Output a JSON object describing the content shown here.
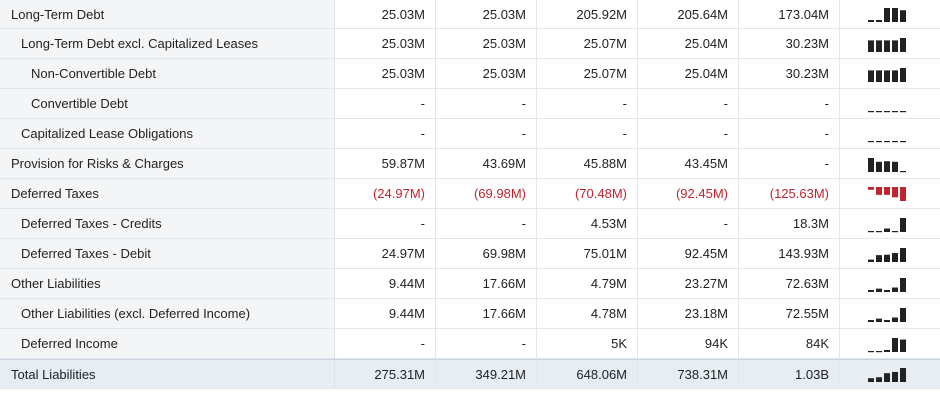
{
  "rows": [
    {
      "label": "Long-Term Debt",
      "indent": 0,
      "values": [
        "25.03M",
        "25.03M",
        "205.92M",
        "205.64M",
        "173.04M"
      ],
      "trend": [
        0.12,
        0.12,
        1.0,
        1.0,
        0.84
      ]
    },
    {
      "label": "Long-Term Debt excl. Capitalized Leases",
      "indent": 1,
      "values": [
        "25.03M",
        "25.03M",
        "25.07M",
        "25.04M",
        "30.23M"
      ],
      "trend": [
        0.83,
        0.83,
        0.83,
        0.83,
        1.0
      ]
    },
    {
      "label": "Non-Convertible Debt",
      "indent": 2,
      "values": [
        "25.03M",
        "25.03M",
        "25.07M",
        "25.04M",
        "30.23M"
      ],
      "trend": [
        0.83,
        0.83,
        0.83,
        0.83,
        1.0
      ]
    },
    {
      "label": "Convertible Debt",
      "indent": 2,
      "values": [
        "-",
        "-",
        "-",
        "-",
        "-"
      ],
      "trend": [
        0,
        0,
        0,
        0,
        0
      ]
    },
    {
      "label": "Capitalized Lease Obligations",
      "indent": 1,
      "values": [
        "-",
        "-",
        "-",
        "-",
        "-"
      ],
      "trend": [
        0,
        0,
        0,
        0,
        0
      ]
    },
    {
      "label": "Provision for Risks & Charges",
      "indent": 0,
      "values": [
        "59.87M",
        "43.69M",
        "45.88M",
        "43.45M",
        "-"
      ],
      "trend": [
        1.0,
        0.73,
        0.77,
        0.73,
        0
      ]
    },
    {
      "label": "Deferred Taxes",
      "indent": 0,
      "values": [
        "(24.97M)",
        "(69.98M)",
        "(70.48M)",
        "(92.45M)",
        "(125.63M)"
      ],
      "trend": [
        -0.2,
        -0.56,
        -0.56,
        -0.74,
        -1.0
      ],
      "negative": true
    },
    {
      "label": "Deferred Taxes - Credits",
      "indent": 1,
      "values": [
        "-",
        "-",
        "4.53M",
        "-",
        "18.3M"
      ],
      "trend": [
        0,
        0,
        0.25,
        0,
        1.0
      ]
    },
    {
      "label": "Deferred Taxes - Debit",
      "indent": 1,
      "values": [
        "24.97M",
        "69.98M",
        "75.01M",
        "92.45M",
        "143.93M"
      ],
      "trend": [
        0.17,
        0.49,
        0.52,
        0.64,
        1.0
      ]
    },
    {
      "label": "Other Liabilities",
      "indent": 0,
      "values": [
        "9.44M",
        "17.66M",
        "4.79M",
        "23.27M",
        "72.63M"
      ],
      "trend": [
        0.13,
        0.24,
        0.07,
        0.32,
        1.0
      ]
    },
    {
      "label": "Other Liabilities (excl. Deferred Income)",
      "indent": 1,
      "values": [
        "9.44M",
        "17.66M",
        "4.78M",
        "23.18M",
        "72.55M"
      ],
      "trend": [
        0.13,
        0.24,
        0.07,
        0.32,
        1.0
      ]
    },
    {
      "label": "Deferred Income",
      "indent": 1,
      "values": [
        "-",
        "-",
        "5K",
        "94K",
        "84K"
      ],
      "trend": [
        0,
        0,
        0.05,
        1.0,
        0.89
      ]
    },
    {
      "label": "Total Liabilities",
      "indent": 0,
      "values": [
        "275.31M",
        "349.21M",
        "648.06M",
        "738.31M",
        "1.03B"
      ],
      "trend": [
        0.27,
        0.34,
        0.63,
        0.72,
        1.0
      ],
      "total": true
    }
  ],
  "colors": {
    "positive_bar": "#222222",
    "negative_bar": "#c0242e",
    "negative_text": "#c0242e"
  }
}
